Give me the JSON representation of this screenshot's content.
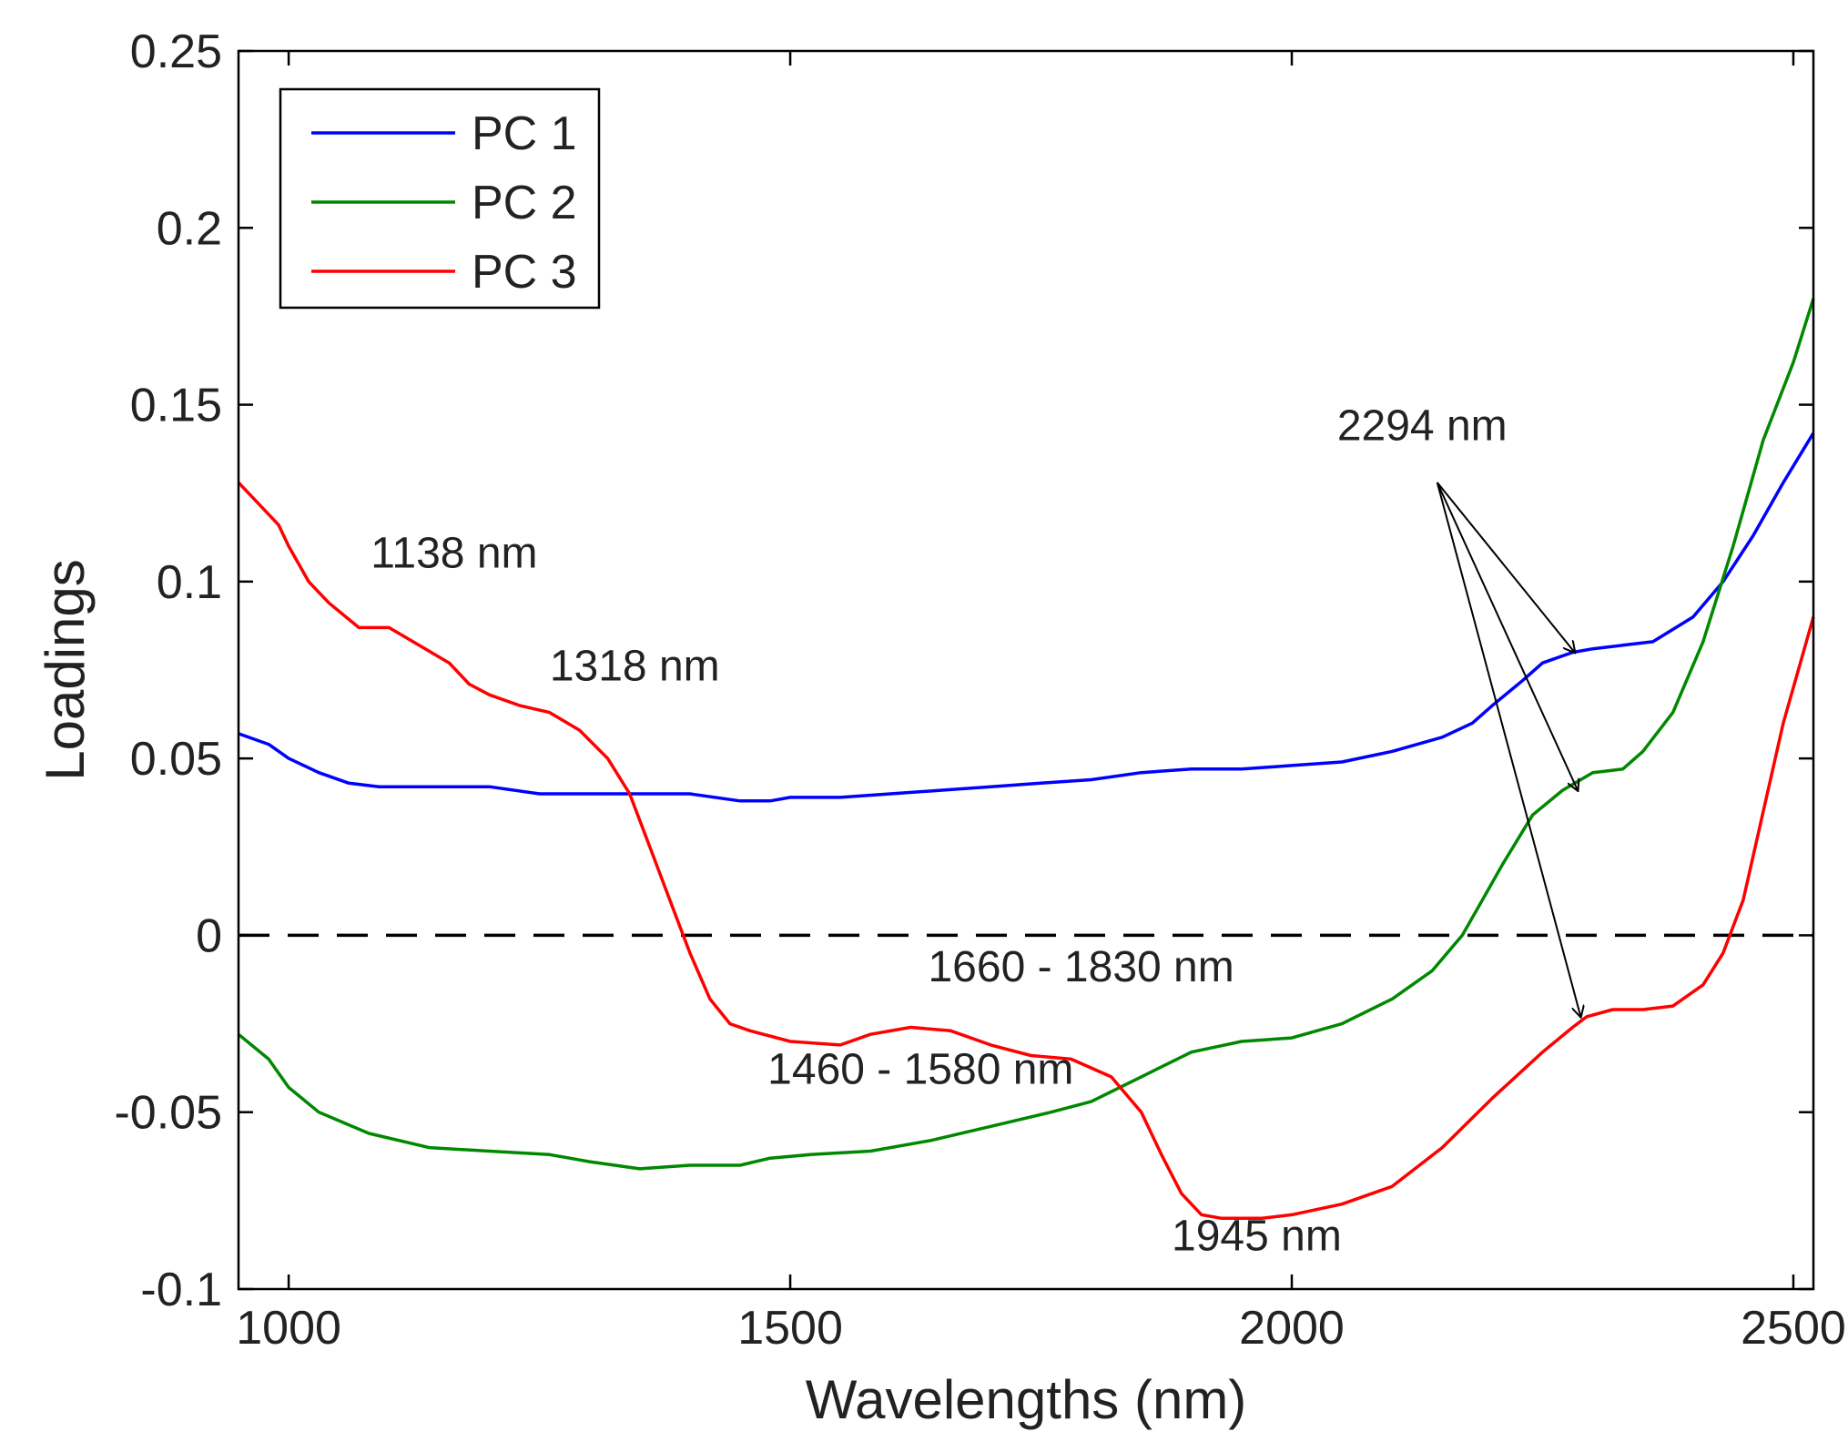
{
  "chart_data": {
    "type": "line",
    "title": "",
    "xlabel": "Wavelengths (nm)",
    "ylabel": "Loadings",
    "xlim": [
      950,
      2520
    ],
    "ylim": [
      -0.1,
      0.25
    ],
    "xticks": [
      1000,
      1500,
      2000,
      2500
    ],
    "yticks": [
      -0.1,
      -0.05,
      0,
      0.05,
      0.1,
      0.15,
      0.2,
      0.25
    ],
    "xtick_labels": [
      "1000",
      "1500",
      "2000",
      "2500"
    ],
    "ytick_labels": [
      "-0.1",
      "-0.05",
      "0",
      "0.05",
      "0.1",
      "0.15",
      "0.2",
      "0.25"
    ],
    "grid": false,
    "legend": "top-left",
    "zero_line": {
      "y": 0,
      "style": "dashed",
      "color": "#000000"
    },
    "series": [
      {
        "name": "PC 1",
        "color": "#0000ff",
        "x": [
          950,
          980,
          1000,
          1030,
          1060,
          1090,
          1150,
          1200,
          1250,
          1300,
          1350,
          1400,
          1450,
          1480,
          1500,
          1550,
          1600,
          1650,
          1700,
          1750,
          1800,
          1850,
          1900,
          1950,
          2000,
          2050,
          2100,
          2150,
          2180,
          2200,
          2230,
          2250,
          2280,
          2300,
          2330,
          2360,
          2400,
          2430,
          2460,
          2490,
          2520
        ],
        "y": [
          0.057,
          0.054,
          0.05,
          0.046,
          0.043,
          0.042,
          0.042,
          0.042,
          0.04,
          0.04,
          0.04,
          0.04,
          0.038,
          0.038,
          0.039,
          0.039,
          0.04,
          0.041,
          0.042,
          0.043,
          0.044,
          0.046,
          0.047,
          0.047,
          0.048,
          0.049,
          0.052,
          0.056,
          0.06,
          0.065,
          0.072,
          0.077,
          0.08,
          0.081,
          0.082,
          0.083,
          0.09,
          0.1,
          0.113,
          0.128,
          0.142
        ]
      },
      {
        "name": "PC 2",
        "color": "#008800",
        "x": [
          950,
          980,
          1000,
          1030,
          1080,
          1140,
          1200,
          1260,
          1300,
          1350,
          1400,
          1450,
          1480,
          1520,
          1580,
          1640,
          1700,
          1760,
          1800,
          1850,
          1900,
          1950,
          2000,
          2050,
          2100,
          2140,
          2170,
          2190,
          2210,
          2240,
          2270,
          2300,
          2330,
          2350,
          2380,
          2410,
          2440,
          2470,
          2500,
          2520
        ],
        "y": [
          -0.028,
          -0.035,
          -0.043,
          -0.05,
          -0.056,
          -0.06,
          -0.061,
          -0.062,
          -0.064,
          -0.066,
          -0.065,
          -0.065,
          -0.063,
          -0.062,
          -0.061,
          -0.058,
          -0.054,
          -0.05,
          -0.047,
          -0.04,
          -0.033,
          -0.03,
          -0.029,
          -0.025,
          -0.018,
          -0.01,
          0.0,
          0.01,
          0.02,
          0.034,
          0.041,
          0.046,
          0.047,
          0.052,
          0.063,
          0.083,
          0.11,
          0.14,
          0.162,
          0.18
        ]
      },
      {
        "name": "PC 3",
        "color": "#ff0000",
        "x": [
          950,
          990,
          1000,
          1020,
          1040,
          1070,
          1100,
          1130,
          1160,
          1180,
          1200,
          1230,
          1260,
          1290,
          1318,
          1340,
          1360,
          1380,
          1400,
          1420,
          1440,
          1460,
          1500,
          1550,
          1580,
          1620,
          1660,
          1700,
          1740,
          1780,
          1820,
          1850,
          1870,
          1890,
          1910,
          1930,
          1945,
          1970,
          2000,
          2050,
          2100,
          2150,
          2200,
          2250,
          2280,
          2294,
          2320,
          2350,
          2380,
          2410,
          2430,
          2450,
          2470,
          2490,
          2520
        ],
        "y": [
          0.128,
          0.116,
          0.11,
          0.1,
          0.094,
          0.087,
          0.087,
          0.082,
          0.077,
          0.071,
          0.068,
          0.065,
          0.063,
          0.058,
          0.05,
          0.04,
          0.025,
          0.01,
          -0.005,
          -0.018,
          -0.025,
          -0.027,
          -0.03,
          -0.031,
          -0.028,
          -0.026,
          -0.027,
          -0.031,
          -0.034,
          -0.035,
          -0.04,
          -0.05,
          -0.062,
          -0.073,
          -0.079,
          -0.08,
          -0.08,
          -0.08,
          -0.079,
          -0.076,
          -0.071,
          -0.06,
          -0.046,
          -0.033,
          -0.026,
          -0.023,
          -0.021,
          -0.021,
          -0.02,
          -0.014,
          -0.005,
          0.01,
          0.035,
          0.06,
          0.09
        ]
      }
    ],
    "annotations": [
      {
        "text": "1138 nm",
        "x": 1165,
        "y": 0.104
      },
      {
        "text": "1318 nm",
        "x": 1345,
        "y": 0.072
      },
      {
        "text": "1460 - 1580 nm",
        "x": 1630,
        "y": -0.042
      },
      {
        "text": "1660 - 1830 nm",
        "x": 1790,
        "y": -0.013
      },
      {
        "text": "1945 nm",
        "x": 1965,
        "y": -0.089
      },
      {
        "text": "2294 nm",
        "x": 2130,
        "y": 0.14
      }
    ],
    "arrows": [
      {
        "label": "2294 nm",
        "from": [
          2145,
          0.128
        ],
        "to": [
          2282,
          0.08
        ]
      },
      {
        "label": "2294 nm",
        "from": [
          2145,
          0.128
        ],
        "to": [
          2285,
          0.041
        ]
      },
      {
        "label": "2294 nm",
        "from": [
          2145,
          0.128
        ],
        "to": [
          2288,
          -0.023
        ]
      }
    ]
  }
}
